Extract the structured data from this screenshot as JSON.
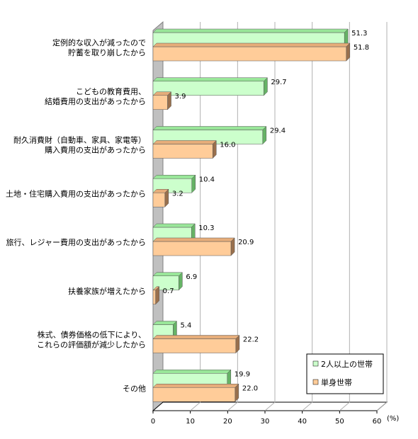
{
  "colors": {
    "series1_front": "#ccffcc",
    "series1_top": "#99e699",
    "series1_side": "#66b366",
    "series2_front": "#ffcc99",
    "series2_top": "#e6ad7a",
    "series2_side": "#99704d",
    "wall": "#c0c0c0",
    "wall_dark": "#808080",
    "grid": "#b0b0b0"
  },
  "chart_data": {
    "type": "bar",
    "orientation": "horizontal",
    "categories": [
      [
        "定例的な収入が減ったので",
        "貯蓄を取り崩したから"
      ],
      [
        "こどもの教育費用、",
        "結婚費用の支出があったから"
      ],
      [
        "耐久消費財（自動車、家具、家電等）",
        "購入費用の支出があったから"
      ],
      [
        "土地・住宅購入費用の支出があったから"
      ],
      [
        "旅行、レジャー費用の支出があったから"
      ],
      [
        "扶養家族が増えたから"
      ],
      [
        "株式、債券価格の低下により、",
        "これらの評価額が減少したから"
      ],
      [
        "その他"
      ]
    ],
    "series": [
      {
        "name": "2人以上の世帯",
        "values": [
          51.3,
          29.7,
          29.4,
          10.4,
          10.3,
          6.9,
          5.4,
          19.9
        ],
        "labels": [
          "51.3",
          "29.7",
          "29.4",
          "10.4",
          "10.3",
          "6.9",
          "5.4",
          "19.9"
        ]
      },
      {
        "name": "単身世帯",
        "values": [
          51.8,
          3.9,
          16.0,
          3.2,
          20.9,
          0.7,
          22.2,
          22.0
        ],
        "labels": [
          "51.8",
          "3.9",
          "16.0",
          "3.2",
          "20.9",
          "0.7",
          "22.2",
          "22.0"
        ]
      }
    ],
    "x_ticks": [
      "0",
      "10",
      "20",
      "30",
      "40",
      "50",
      "60"
    ],
    "xlim": [
      0,
      60
    ],
    "x_unit": "(%)",
    "grid": true,
    "legend_position": "bottom-right"
  }
}
